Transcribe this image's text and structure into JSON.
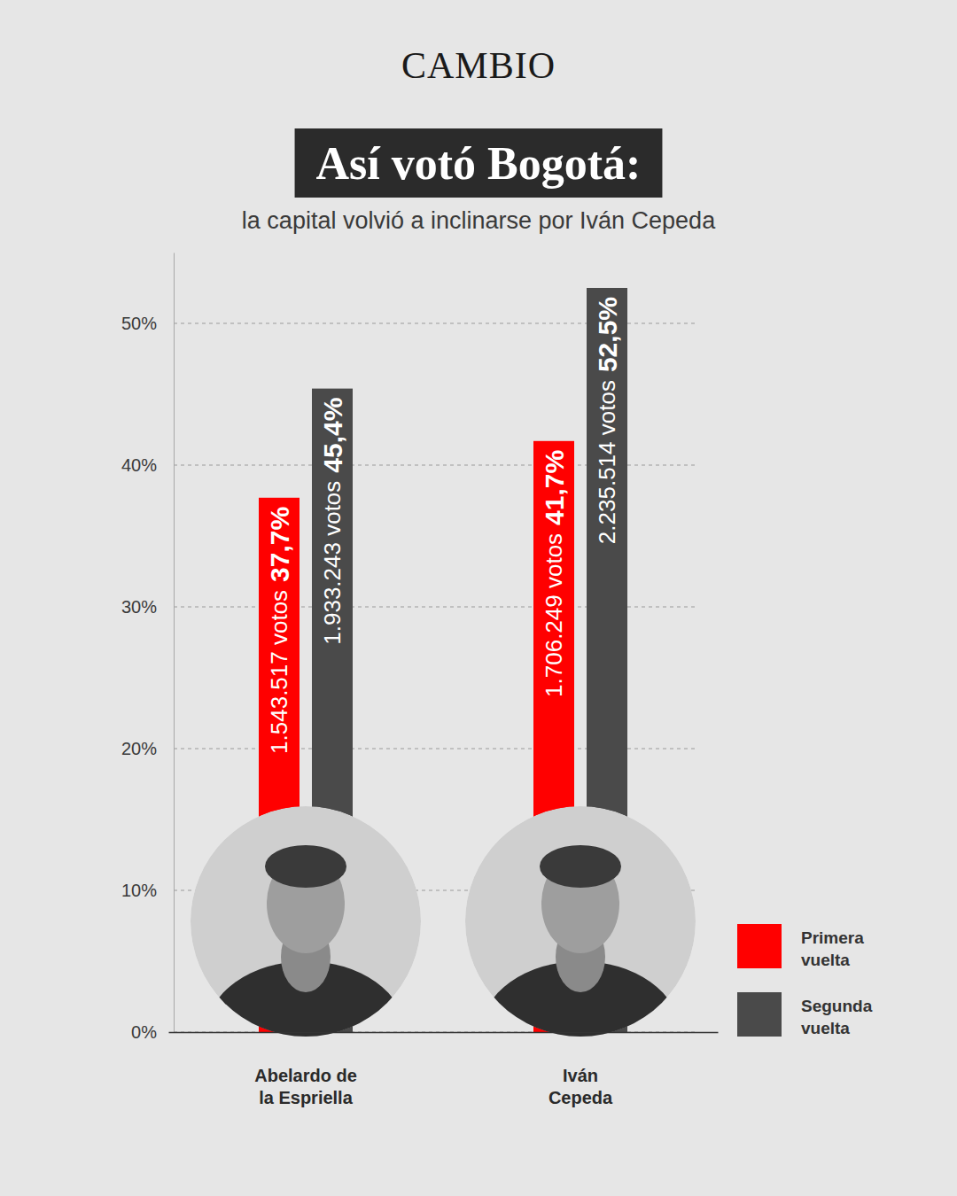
{
  "chart_data": {
    "type": "bar",
    "logo": "CAMBIO",
    "title": "Así votó Bogotá:",
    "subtitle": "la capital volvió a inclinarse por Iván Cepeda",
    "categories": [
      "Abelardo de la Espriella",
      "Iván Cepeda"
    ],
    "series": [
      {
        "name": "Primera vuelta",
        "color": "#ff0000",
        "values": [
          37.7,
          41.7
        ],
        "value_labels": [
          "37,7%",
          "41,7%"
        ],
        "votes_labels": [
          "1.543.517 votos",
          "1.706.249 votos"
        ]
      },
      {
        "name": "Segunda vuelta",
        "color": "#4a4a4a",
        "values": [
          45.4,
          52.5
        ],
        "value_labels": [
          "45,4%",
          "52,5%"
        ],
        "votes_labels": [
          "1.933.243 votos",
          "2.235.514 votos"
        ]
      }
    ],
    "ylim": [
      0,
      55
    ],
    "yticks": [
      {
        "value": 0,
        "label": "0%"
      },
      {
        "value": 10,
        "label": "10%"
      },
      {
        "value": 20,
        "label": "20%"
      },
      {
        "value": 30,
        "label": "30%"
      },
      {
        "value": 40,
        "label": "40%"
      },
      {
        "value": 50,
        "label": "50%"
      }
    ],
    "grid": true,
    "data_labels": true,
    "legend": "right"
  }
}
